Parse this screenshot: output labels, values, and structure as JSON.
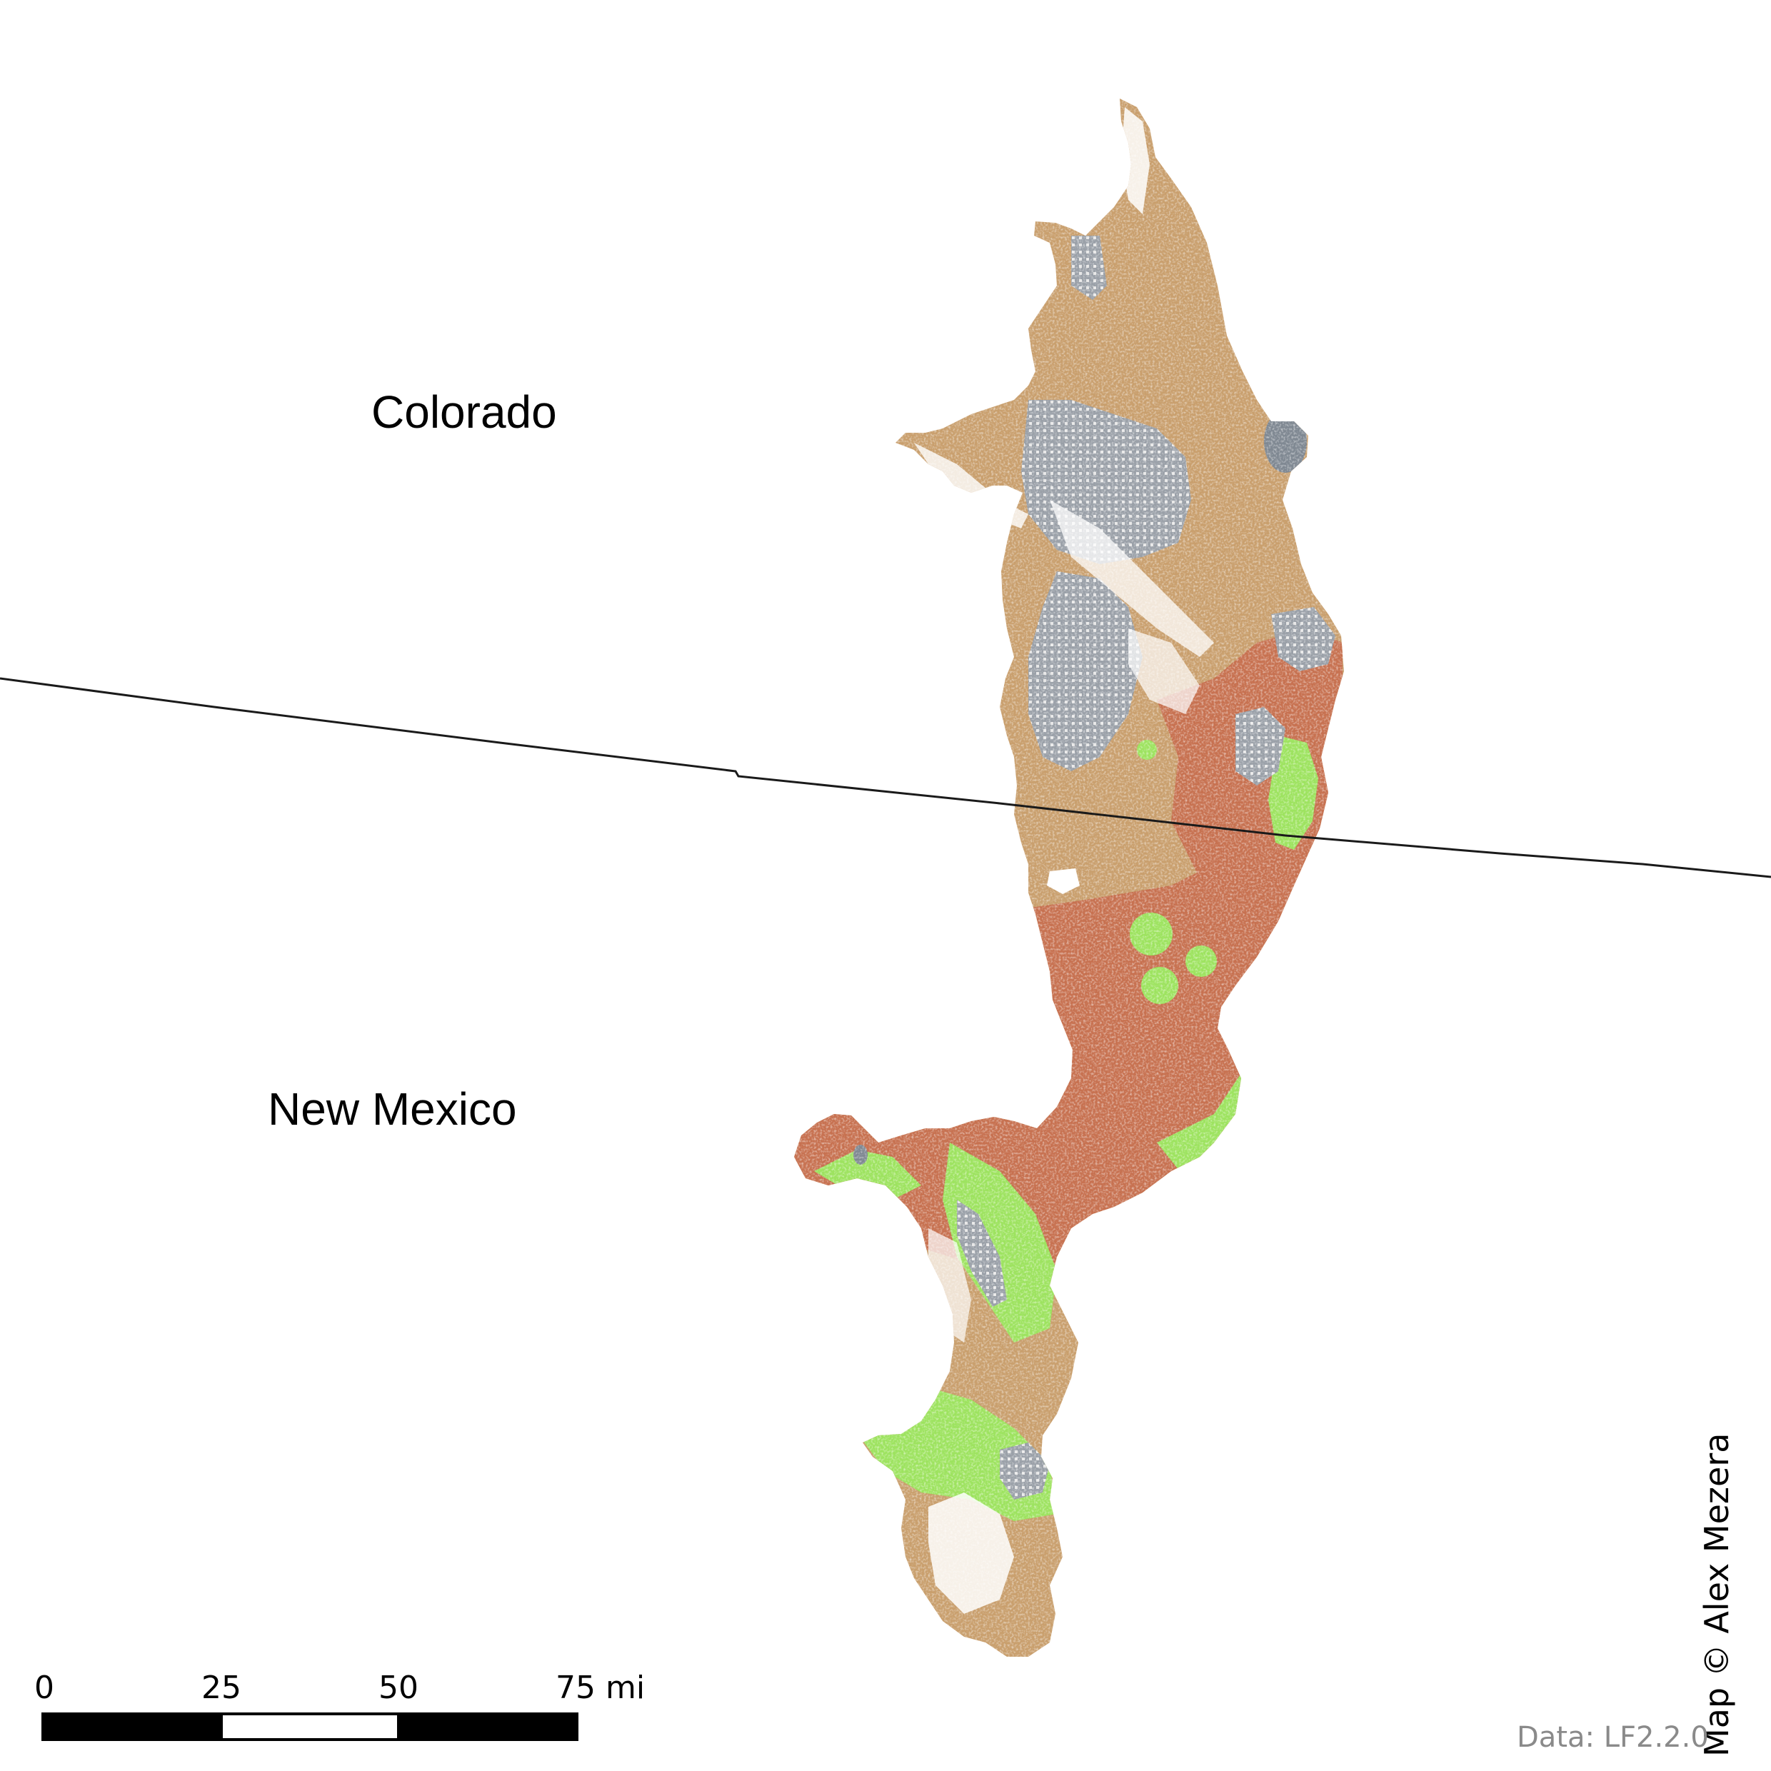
{
  "map": {
    "states": [
      {
        "name": "Colorado"
      },
      {
        "name": "New Mexico"
      }
    ],
    "colors": {
      "shrubland": "#c99f6d",
      "grassland": "#c77150",
      "forest": "#9de35f",
      "developed": "#8a919b",
      "water": "#7f8892",
      "border": "#1a1a1a"
    },
    "scale_bar": {
      "ticks": [
        "0",
        "25",
        "50",
        "75 mi"
      ]
    },
    "credit": "Map © Alex Mezera",
    "source": "Data: LF2.2.0"
  }
}
